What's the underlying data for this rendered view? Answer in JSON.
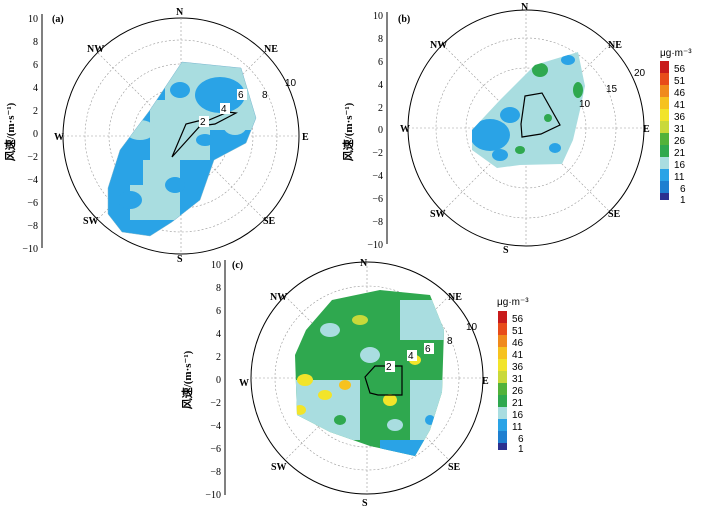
{
  "ylabel": "风速/(m·s⁻¹)",
  "directions": [
    "N",
    "NE",
    "E",
    "SE",
    "S",
    "SW",
    "W",
    "NW"
  ],
  "colors": {
    "c1": "#2b3190",
    "c6": "#1e7fd0",
    "c11": "#2aa3e6",
    "c16": "#a9dde0",
    "c21": "#2fa84f",
    "c26": "#52b23a",
    "c31": "#c9d93a",
    "c36": "#f2e42a",
    "c41": "#f6c21f",
    "c46": "#f08a1c",
    "c51": "#e84c1a",
    "c56": "#c81b1b"
  },
  "chart_data": [
    {
      "panel": "(a)",
      "type": "heatmap",
      "title": "",
      "ylabel": "风速/(m·s⁻¹)",
      "yticks": [
        "10",
        "8",
        "6",
        "4",
        "2",
        "0",
        "−2",
        "−4",
        "−6",
        "−8",
        "−10"
      ],
      "ylim": [
        -10,
        10
      ],
      "rings": [
        "2",
        "4",
        "6",
        "8",
        "10"
      ],
      "directions": [
        "N",
        "NE",
        "E",
        "SE",
        "S",
        "SW",
        "W",
        "NW"
      ],
      "dominant_colors": [
        "#2aa3e6",
        "#a9dde0"
      ]
    },
    {
      "panel": "(b)",
      "type": "heatmap",
      "title": "",
      "ylabel": "风速/(m·s⁻¹)",
      "yticks": [
        "10",
        "8",
        "6",
        "4",
        "2",
        "0",
        "−2",
        "−4",
        "−6",
        "−8",
        "−10"
      ],
      "ylim": [
        -10,
        10
      ],
      "rings": [
        "10",
        "15",
        "20"
      ],
      "directions": [
        "N",
        "NE",
        "E",
        "SE",
        "S",
        "SW",
        "W",
        "NW"
      ],
      "colorbar": {
        "unit": "μg·m⁻³",
        "levels": [
          "56",
          "51",
          "46",
          "41",
          "36",
          "31",
          "26",
          "21",
          "16",
          "11",
          "6",
          "1"
        ]
      },
      "dominant_colors": [
        "#a9dde0",
        "#2aa3e6",
        "#2fa84f"
      ]
    },
    {
      "panel": "(c)",
      "type": "heatmap",
      "title": "",
      "ylabel": "风速/(m·s⁻¹)",
      "yticks": [
        "10",
        "8",
        "6",
        "4",
        "2",
        "0",
        "−2",
        "−4",
        "−6",
        "−8",
        "−10"
      ],
      "ylim": [
        -10,
        10
      ],
      "rings": [
        "2",
        "4",
        "6",
        "8",
        "10"
      ],
      "directions": [
        "N",
        "NE",
        "E",
        "SE",
        "S",
        "SW",
        "W",
        "NW"
      ],
      "colorbar": {
        "unit": "μg·m⁻³",
        "levels": [
          "56",
          "51",
          "46",
          "41",
          "36",
          "31",
          "26",
          "21",
          "16",
          "11",
          "6",
          "1"
        ]
      },
      "dominant_colors": [
        "#2fa84f",
        "#a9dde0",
        "#f2e42a"
      ]
    }
  ]
}
